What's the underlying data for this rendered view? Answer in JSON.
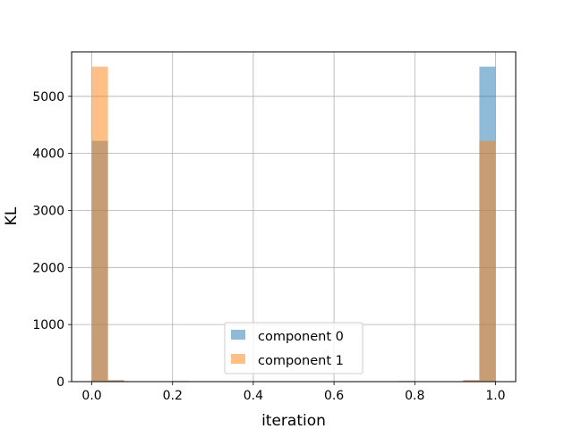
{
  "chart_data": {
    "type": "bar",
    "title": "",
    "xlabel": "iteration",
    "ylabel": "KL",
    "xlim": [
      -0.05,
      1.05
    ],
    "ylim": [
      0,
      5780
    ],
    "xticks": [
      0.0,
      0.2,
      0.4,
      0.6,
      0.8,
      1.0
    ],
    "xtick_labels": [
      "0.0",
      "0.2",
      "0.4",
      "0.6",
      "0.8",
      "1.0"
    ],
    "yticks": [
      0,
      1000,
      2000,
      3000,
      4000,
      5000
    ],
    "ytick_labels": [
      "0",
      "1000",
      "2000",
      "3000",
      "4000",
      "5000"
    ],
    "grid": true,
    "legend_position": "lower-center",
    "bin_edges": [
      0.0,
      0.04,
      0.08,
      0.12,
      0.16,
      0.2,
      0.24,
      0.28,
      0.32,
      0.36,
      0.4,
      0.44,
      0.48,
      0.52,
      0.56,
      0.6,
      0.64,
      0.68,
      0.72,
      0.76,
      0.8,
      0.84,
      0.88,
      0.92,
      0.96,
      1.0
    ],
    "series": [
      {
        "name": "component 0",
        "color": "#1f77b4",
        "alpha": 0.5,
        "values": [
          4220,
          25,
          8,
          6,
          5,
          10,
          4,
          3,
          2,
          2,
          2,
          2,
          2,
          2,
          2,
          2,
          2,
          3,
          6,
          10,
          6,
          5,
          8,
          25,
          5520
        ]
      },
      {
        "name": "component 1",
        "color": "#ff7f0e",
        "alpha": 0.5,
        "values": [
          5520,
          25,
          8,
          6,
          5,
          10,
          4,
          3,
          2,
          2,
          2,
          2,
          2,
          2,
          2,
          2,
          2,
          3,
          6,
          10,
          6,
          5,
          8,
          25,
          4220
        ]
      }
    ]
  }
}
